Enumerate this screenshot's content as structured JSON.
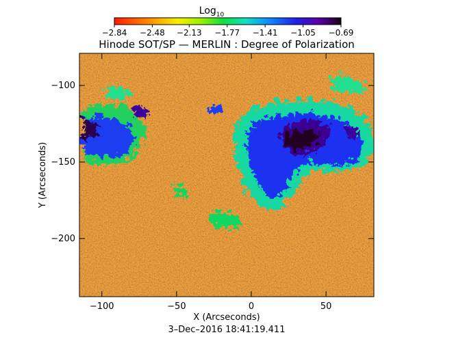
{
  "title": "Hinode SOT/SP — MERLIN : Degree of Polarization",
  "colorbar": {
    "label_main": "Log",
    "label_sub": "10",
    "ticks": [
      "−2.84",
      "−2.48",
      "−2.13",
      "−1.77",
      "−1.41",
      "−1.05",
      "−0.69"
    ],
    "tick_values": [
      -2.84,
      -2.48,
      -2.13,
      -1.77,
      -1.41,
      -1.05,
      -0.69
    ],
    "range": [
      -2.84,
      -0.69
    ]
  },
  "x_axis": {
    "label": "X (Arcseconds)",
    "ticks": [
      "−100",
      "−50",
      "0",
      "50"
    ],
    "tick_values": [
      -100,
      -50,
      0,
      50
    ],
    "range": [
      -115,
      82
    ]
  },
  "y_axis": {
    "label": "Y (Arcseconds)",
    "ticks": [
      "−100",
      "−150",
      "−200"
    ],
    "tick_values": [
      -100,
      -150,
      -200
    ],
    "range": [
      -238,
      -79
    ]
  },
  "timestamp": "3–Dec–2016 18:41:19.411"
}
